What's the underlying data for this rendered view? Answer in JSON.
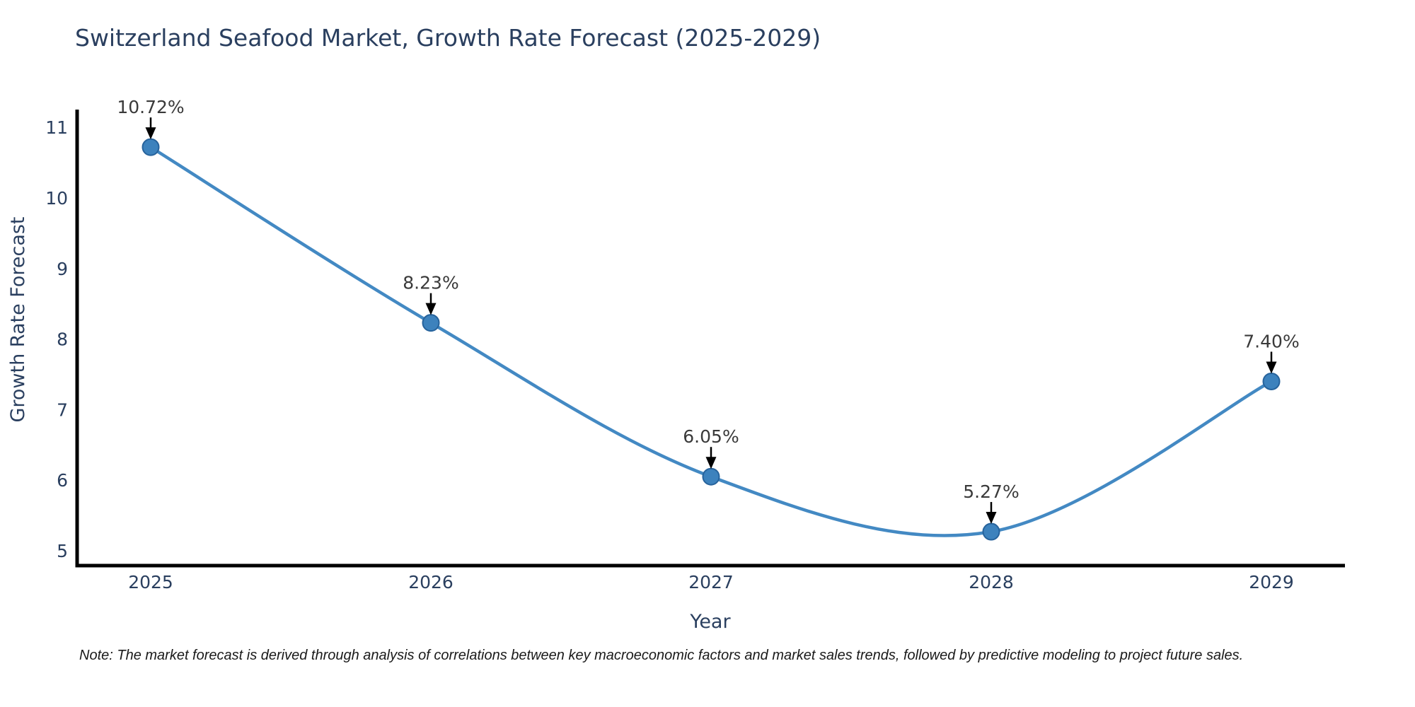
{
  "title": "Switzerland Seafood Market, Growth Rate Forecast (2025-2029)",
  "note": "Note: The market forecast is derived through analysis of correlations between key macroeconomic factors and market sales trends, followed by predictive modeling to project future sales.",
  "chart_data": {
    "type": "line",
    "title": "Switzerland Seafood Market, Growth Rate Forecast (2025-2029)",
    "xlabel": "Year",
    "ylabel": "Growth Rate Forecast",
    "categories": [
      "2025",
      "2026",
      "2027",
      "2028",
      "2029"
    ],
    "series": [
      {
        "name": "Growth Rate Forecast",
        "values": [
          10.72,
          8.23,
          6.05,
          5.27,
          7.4
        ],
        "point_labels": [
          "10.72%",
          "8.23%",
          "6.05%",
          "5.27%",
          "7.40%"
        ]
      }
    ],
    "yticks": [
      5,
      6,
      7,
      8,
      9,
      10,
      11
    ],
    "ylim": [
      4.8,
      11.25
    ],
    "line_shape": "spline",
    "grid": false,
    "legend": "none",
    "annotations_style": "value label with down arrow to point",
    "colors": {
      "line": "#4389c3",
      "marker_fill": "#3d82bd",
      "marker_edge": "#27639c",
      "axis_line": "#000000",
      "title_text": "#2a3f5f",
      "tick_text": "#2a3f5f",
      "annotation_text": "#3a3a3a",
      "arrow": "#000000",
      "note_text": "#1a1a1a",
      "background": "#ffffff"
    }
  }
}
